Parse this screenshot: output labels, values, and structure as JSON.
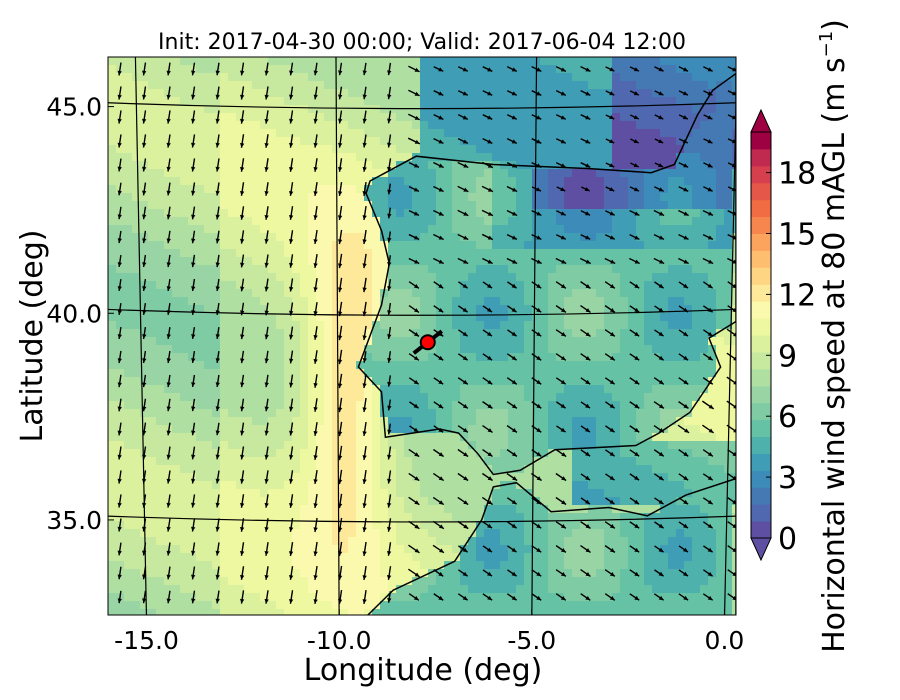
{
  "chart_data": {
    "type": "heatmap",
    "title": "Init: 2017-04-30 00:00; Valid: 2017-06-04 12:00",
    "xlabel": "Longitude (deg)",
    "ylabel": "Latitude (deg)",
    "x_ticks": [
      {
        "value": -15.0,
        "label": "-15.0"
      },
      {
        "value": -10.0,
        "label": "-10.0"
      },
      {
        "value": -5.0,
        "label": "-5.0"
      },
      {
        "value": 0.0,
        "label": "0.0"
      }
    ],
    "y_ticks": [
      {
        "value": 45.0,
        "label": "45.0"
      },
      {
        "value": 40.0,
        "label": "40.0"
      },
      {
        "value": 35.0,
        "label": "35.0"
      }
    ],
    "xlim": [
      -16.0,
      0.3
    ],
    "ylim": [
      32.7,
      46.2
    ],
    "grid": true,
    "colorbar": {
      "label": "Horizontal wind speed at 80 mAGL (m s",
      "label_unit_superscript": "−1",
      "label_close": ")",
      "range": [
        0,
        20
      ],
      "extend": "both",
      "ticks": [
        {
          "value": 0,
          "label": "0"
        },
        {
          "value": 3,
          "label": "3"
        },
        {
          "value": 6,
          "label": "6"
        },
        {
          "value": 9,
          "label": "9"
        },
        {
          "value": 12,
          "label": "12"
        },
        {
          "value": 15,
          "label": "15"
        },
        {
          "value": 18,
          "label": "18"
        }
      ],
      "colors": [
        "#5e4fa2",
        "#4f68af",
        "#4479b4",
        "#3d8bb8",
        "#3f9eb5",
        "#4fb1ab",
        "#66c2a5",
        "#7fcba4",
        "#99d5a4",
        "#b0dfa2",
        "#c7e89f",
        "#dcf19d",
        "#eef8a0",
        "#fbf9ae",
        "#fee99a",
        "#fed583",
        "#fdbe6f",
        "#fca35e",
        "#f7864e",
        "#f16b43",
        "#e55748",
        "#d6404e",
        "#c02a4f",
        "#9e0142"
      ]
    },
    "marker": {
      "lon": -7.7,
      "lat": 39.3,
      "color": "#ff0000"
    }
  }
}
